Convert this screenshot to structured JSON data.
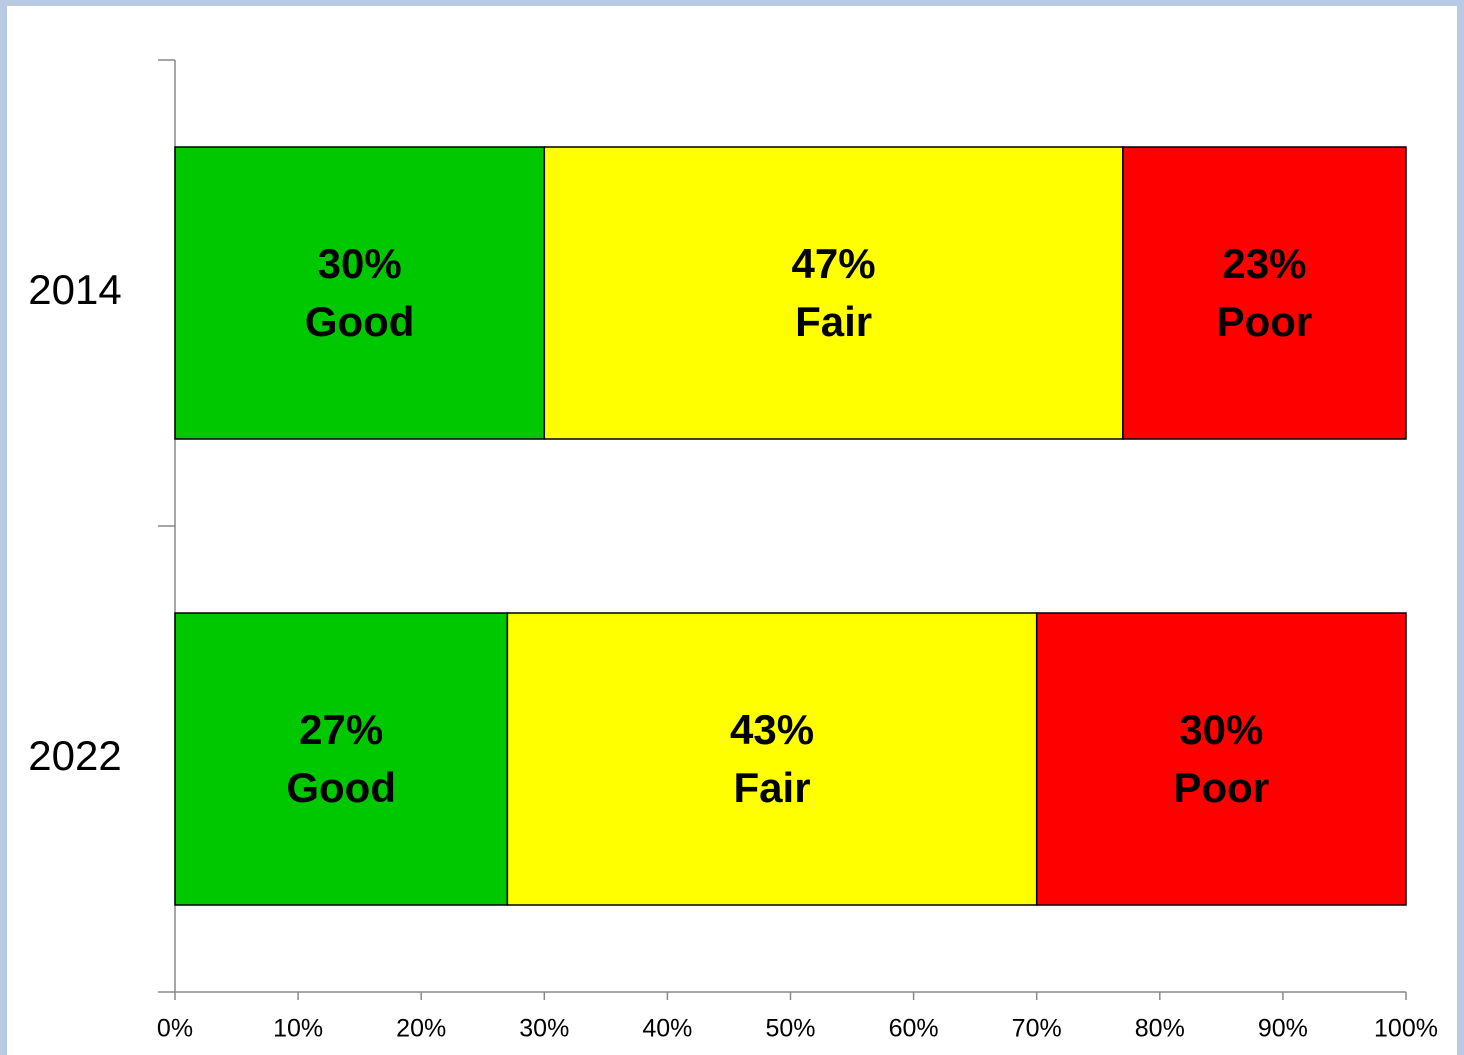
{
  "chart_data": {
    "type": "stacked_bar_horizontal",
    "categories": [
      "2014",
      "2022"
    ],
    "series": [
      {
        "name": "Good",
        "color": "#00c800",
        "values": [
          30,
          27
        ],
        "value_labels": [
          "30%",
          "27%"
        ]
      },
      {
        "name": "Fair",
        "color": "#ffff00",
        "values": [
          47,
          43
        ],
        "value_labels": [
          "47%",
          "43%"
        ]
      },
      {
        "name": "Poor",
        "color": "#ff0000",
        "values": [
          23,
          30
        ],
        "value_labels": [
          "23%",
          "30%"
        ]
      }
    ],
    "xlim": [
      0,
      100
    ],
    "xticks": [
      {
        "value": 0,
        "label": "0%"
      },
      {
        "value": 10,
        "label": "10%"
      },
      {
        "value": 20,
        "label": "20%"
      },
      {
        "value": 30,
        "label": "30%"
      },
      {
        "value": 40,
        "label": "40%"
      },
      {
        "value": 50,
        "label": "50%"
      },
      {
        "value": 60,
        "label": "60%"
      },
      {
        "value": 70,
        "label": "70%"
      },
      {
        "value": 80,
        "label": "80%"
      },
      {
        "value": 90,
        "label": "90%"
      },
      {
        "value": 100,
        "label": "100%"
      }
    ]
  }
}
